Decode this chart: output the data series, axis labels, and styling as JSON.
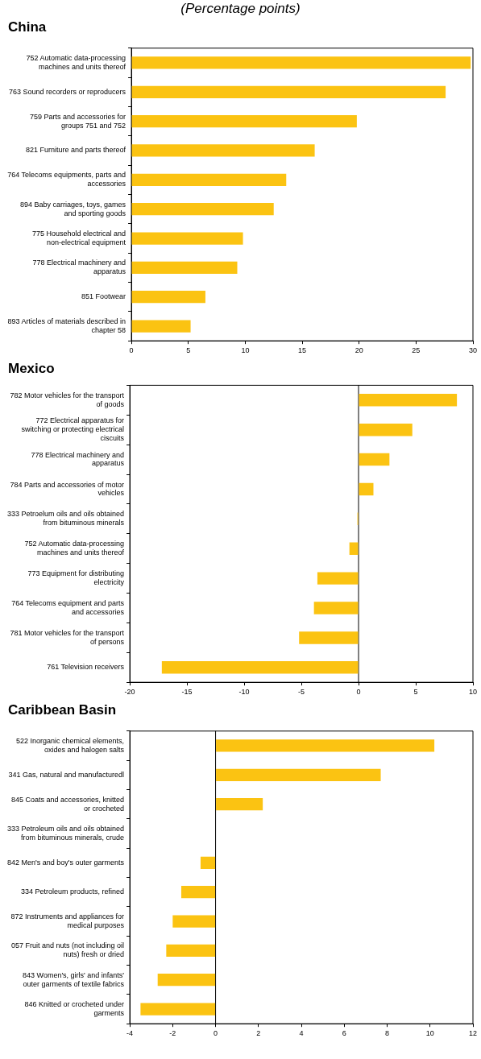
{
  "chart_data": [
    {
      "type": "bar",
      "orientation": "horizontal",
      "subtitle": "(Percentage points)",
      "title": "China",
      "categories": [
        "752 Automatic data-processing machines and units thereof",
        "763 Sound recorders or reproducers",
        "759 Parts and accessories for groups 751 and 752",
        "821 Furniture and parts thereof",
        "764 Telecoms equipments, parts and accessories",
        "894 Baby carriages, toys, games and sporting goods",
        "775 Household electrical and non-electrical equipment",
        "778 Electrical machinery and apparatus",
        "851 Footwear",
        "893 Articles of materials described in chapter 58"
      ],
      "values": [
        29.8,
        27.6,
        19.8,
        16.1,
        13.6,
        12.5,
        9.8,
        9.3,
        6.5,
        5.2
      ],
      "color": "#fbc312",
      "xlim": [
        0,
        30
      ],
      "xticks": [
        0,
        5,
        10,
        15,
        20,
        25,
        30
      ],
      "grid": false,
      "legend": false
    },
    {
      "type": "bar",
      "orientation": "horizontal",
      "title": "Mexico",
      "categories": [
        "782 Motor vehicles for the transport of goods",
        "772 Electrical apparatus for switching or protecting electrical ciscuits",
        "778 Electrical machinery and apparatus",
        "784 Parts and accessories of motor vehicles",
        "333 Petroelum oils and oils obtained from bituminous minerals",
        "752 Automatic data-processing machines and units thereof",
        "773 Equipment for distributing electricity",
        "764 Telecoms equipment and parts and accessories",
        "781 Motor vehicles for the transport of persons",
        "761 Television receivers"
      ],
      "values": [
        8.6,
        4.7,
        2.7,
        1.3,
        -0.1,
        -0.8,
        -3.6,
        -3.9,
        -5.2,
        -17.2
      ],
      "color": "#fbc312",
      "xlim": [
        -20,
        10
      ],
      "xticks": [
        -20,
        -15,
        -10,
        -5,
        0,
        5,
        10
      ],
      "grid": false,
      "legend": false,
      "ref_lines": [
        {
          "axis": "x",
          "value": 0,
          "color": "#000000"
        }
      ]
    },
    {
      "type": "bar",
      "orientation": "horizontal",
      "title": "Caribbean Basin",
      "categories": [
        "522 Inorganic chemical elements, oxides and halogen salts",
        "341 Gas, natural and manufacturedl",
        "845 Coats and accessories, knitted or crocheted",
        "333 Petroleum oils and oils obtained from bituminous minerals, crude",
        "842 Men's and boy's outer garments",
        "334 Petroleum products, refined",
        "872 Instruments and appliances for medical purposes",
        "057 Fruit and nuts (not including oil nuts) fresh or dried",
        "843 Women's, girls' and infants' outer garments of textile fabrics",
        "846 Knitted or crocheted under garments"
      ],
      "values": [
        10.2,
        7.7,
        2.2,
        0,
        -0.7,
        -1.6,
        -2.0,
        -2.3,
        -2.7,
        -3.5
      ],
      "color": "#fbc312",
      "xlim": [
        -4,
        12
      ],
      "xticks": [
        -4,
        -2,
        0,
        2,
        4,
        6,
        8,
        10,
        12
      ],
      "grid": false,
      "legend": false,
      "ref_lines": [
        {
          "axis": "x",
          "value": 0,
          "color": "#000000"
        }
      ]
    }
  ]
}
